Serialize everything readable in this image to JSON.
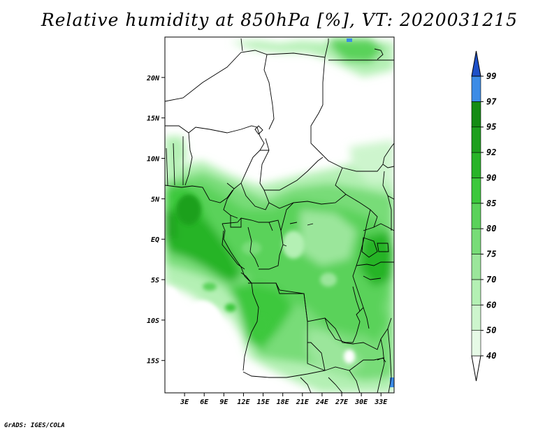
{
  "title": "Relative humidity at 850hPa [%], VT: 2020031215",
  "credit": "GrADS: IGES/COLA",
  "map": {
    "lon_range": [
      0,
      35
    ],
    "lat_range": [
      -19,
      25
    ],
    "lat_ticks": [
      {
        "value": 20,
        "label": "20N"
      },
      {
        "value": 15,
        "label": "15N"
      },
      {
        "value": 10,
        "label": "10N"
      },
      {
        "value": 5,
        "label": "5N"
      },
      {
        "value": 0,
        "label": "EQ"
      },
      {
        "value": -5,
        "label": "5S"
      },
      {
        "value": -10,
        "label": "10S"
      },
      {
        "value": -15,
        "label": "15S"
      }
    ],
    "lon_ticks": [
      {
        "value": 3,
        "label": "3E"
      },
      {
        "value": 6,
        "label": "6E"
      },
      {
        "value": 9,
        "label": "9E"
      },
      {
        "value": 12,
        "label": "12E"
      },
      {
        "value": 15,
        "label": "15E"
      },
      {
        "value": 18,
        "label": "18E"
      },
      {
        "value": 21,
        "label": "21E"
      },
      {
        "value": 24,
        "label": "24E"
      },
      {
        "value": 27,
        "label": "27E"
      },
      {
        "value": 30,
        "label": "30E"
      },
      {
        "value": 33,
        "label": "33E"
      }
    ]
  },
  "colorbar": {
    "labels": [
      "40",
      "50",
      "60",
      "70",
      "75",
      "80",
      "85",
      "90",
      "92",
      "95",
      "97",
      "99"
    ],
    "colors": [
      "#ffffff",
      "#e6fae6",
      "#cdf5cd",
      "#b4f0b4",
      "#9be69b",
      "#78dc78",
      "#5ad25a",
      "#3cc83c",
      "#28b428",
      "#1ea01e",
      "#148c14",
      "#3c8ce6",
      "#1e64d2",
      "#1e50c8"
    ]
  }
}
